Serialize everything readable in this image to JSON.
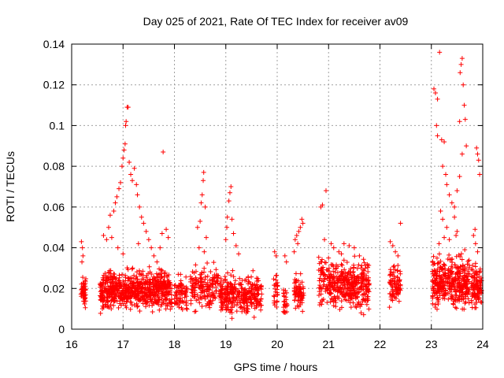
{
  "chart_data": {
    "type": "scatter",
    "title": "Day 025 of 2021, Rate Of TEC Index for receiver av09",
    "xlabel": "GPS time / hours",
    "ylabel": "ROTI / TECUs",
    "xlim": [
      16,
      24
    ],
    "ylim": [
      0,
      0.14
    ],
    "xticks": [
      16,
      17,
      18,
      19,
      20,
      21,
      22,
      23,
      24
    ],
    "yticks": [
      0,
      0.02,
      0.04,
      0.06,
      0.08,
      0.1,
      0.12,
      0.14
    ],
    "ytick_labels": [
      "0",
      "0.02",
      "0.04",
      "0.06",
      "0.08",
      "0.1",
      "0.12",
      "0.14"
    ],
    "grid": true,
    "marker": "+",
    "color": "#ff0000",
    "series": [
      {
        "name": "av09",
        "clusters": [
          {
            "x_start": 16.18,
            "x_end": 16.28,
            "y_low": 0.008,
            "y_high": 0.028,
            "n": 45
          },
          {
            "x_start": 16.55,
            "x_end": 17.95,
            "y_low": 0.006,
            "y_high": 0.032,
            "n": 700
          },
          {
            "x_start": 18.0,
            "x_end": 18.25,
            "y_low": 0.006,
            "y_high": 0.03,
            "n": 70
          },
          {
            "x_start": 18.3,
            "x_end": 18.9,
            "y_low": 0.005,
            "y_high": 0.036,
            "n": 170
          },
          {
            "x_start": 18.9,
            "x_end": 19.7,
            "y_low": 0.004,
            "y_high": 0.03,
            "n": 320
          },
          {
            "x_start": 19.93,
            "x_end": 20.02,
            "y_low": 0.006,
            "y_high": 0.032,
            "n": 25
          },
          {
            "x_start": 20.12,
            "x_end": 20.2,
            "y_low": 0.004,
            "y_high": 0.022,
            "n": 25
          },
          {
            "x_start": 20.32,
            "x_end": 20.52,
            "y_low": 0.006,
            "y_high": 0.03,
            "n": 70
          },
          {
            "x_start": 20.8,
            "x_end": 21.0,
            "y_low": 0.008,
            "y_high": 0.04,
            "n": 60
          },
          {
            "x_start": 21.0,
            "x_end": 21.8,
            "y_low": 0.005,
            "y_high": 0.038,
            "n": 360
          },
          {
            "x_start": 22.18,
            "x_end": 22.4,
            "y_low": 0.008,
            "y_high": 0.034,
            "n": 90
          },
          {
            "x_start": 23.02,
            "x_end": 23.75,
            "y_low": 0.006,
            "y_high": 0.04,
            "n": 380
          },
          {
            "x_start": 23.78,
            "x_end": 23.98,
            "y_low": 0.006,
            "y_high": 0.035,
            "n": 110
          }
        ],
        "outliers": [
          [
            16.19,
            0.043
          ],
          [
            16.21,
            0.04
          ],
          [
            16.22,
            0.036
          ],
          [
            16.2,
            0.033
          ],
          [
            16.68,
            0.044
          ],
          [
            16.72,
            0.05
          ],
          [
            16.75,
            0.056
          ],
          [
            16.78,
            0.045
          ],
          [
            16.82,
            0.058
          ],
          [
            16.85,
            0.062
          ],
          [
            16.88,
            0.065
          ],
          [
            16.92,
            0.069
          ],
          [
            16.95,
            0.072
          ],
          [
            16.98,
            0.08
          ],
          [
            17.0,
            0.084
          ],
          [
            17.02,
            0.088
          ],
          [
            17.04,
            0.091
          ],
          [
            17.05,
            0.1
          ],
          [
            17.06,
            0.102
          ],
          [
            17.08,
            0.109
          ],
          [
            17.1,
            0.109
          ],
          [
            17.12,
            0.082
          ],
          [
            17.15,
            0.076
          ],
          [
            17.18,
            0.073
          ],
          [
            17.22,
            0.079
          ],
          [
            17.26,
            0.071
          ],
          [
            17.28,
            0.066
          ],
          [
            17.32,
            0.06
          ],
          [
            17.36,
            0.055
          ],
          [
            17.4,
            0.052
          ],
          [
            17.45,
            0.048
          ],
          [
            17.5,
            0.044
          ],
          [
            17.55,
            0.04
          ],
          [
            17.6,
            0.036
          ],
          [
            17.66,
            0.033
          ],
          [
            17.72,
            0.04
          ],
          [
            17.76,
            0.047
          ],
          [
            17.78,
            0.087
          ],
          [
            17.84,
            0.049
          ],
          [
            17.88,
            0.045
          ],
          [
            16.9,
            0.04
          ],
          [
            17.0,
            0.037
          ],
          [
            17.3,
            0.042
          ],
          [
            16.62,
            0.046
          ],
          [
            18.45,
            0.05
          ],
          [
            18.5,
            0.053
          ],
          [
            18.52,
            0.062
          ],
          [
            18.54,
            0.066
          ],
          [
            18.56,
            0.073
          ],
          [
            18.57,
            0.077
          ],
          [
            18.6,
            0.06
          ],
          [
            18.62,
            0.045
          ],
          [
            18.48,
            0.04
          ],
          [
            18.58,
            0.038
          ],
          [
            19.0,
            0.044
          ],
          [
            19.03,
            0.055
          ],
          [
            19.06,
            0.063
          ],
          [
            19.08,
            0.067
          ],
          [
            19.1,
            0.07
          ],
          [
            19.12,
            0.054
          ],
          [
            19.15,
            0.047
          ],
          [
            19.2,
            0.041
          ],
          [
            19.25,
            0.037
          ],
          [
            19.02,
            0.05
          ],
          [
            19.95,
            0.038
          ],
          [
            19.98,
            0.036
          ],
          [
            20.15,
            0.036
          ],
          [
            20.18,
            0.033
          ],
          [
            20.35,
            0.044
          ],
          [
            20.38,
            0.046
          ],
          [
            20.42,
            0.048
          ],
          [
            20.45,
            0.05
          ],
          [
            20.48,
            0.054
          ],
          [
            20.5,
            0.052
          ],
          [
            20.4,
            0.042
          ],
          [
            20.33,
            0.038
          ],
          [
            20.85,
            0.06
          ],
          [
            20.88,
            0.061
          ],
          [
            20.95,
            0.068
          ],
          [
            20.92,
            0.044
          ],
          [
            21.05,
            0.042
          ],
          [
            21.1,
            0.04
          ],
          [
            21.2,
            0.038
          ],
          [
            21.3,
            0.042
          ],
          [
            21.4,
            0.041
          ],
          [
            21.5,
            0.04
          ],
          [
            21.6,
            0.036
          ],
          [
            21.25,
            0.037
          ],
          [
            22.2,
            0.043
          ],
          [
            22.25,
            0.041
          ],
          [
            22.3,
            0.038
          ],
          [
            22.4,
            0.052
          ],
          [
            22.35,
            0.036
          ],
          [
            23.05,
            0.118
          ],
          [
            23.08,
            0.116
          ],
          [
            23.12,
            0.113
          ],
          [
            23.16,
            0.136
          ],
          [
            23.1,
            0.1
          ],
          [
            23.12,
            0.095
          ],
          [
            23.2,
            0.093
          ],
          [
            23.25,
            0.092
          ],
          [
            23.22,
            0.08
          ],
          [
            23.28,
            0.076
          ],
          [
            23.3,
            0.071
          ],
          [
            23.35,
            0.066
          ],
          [
            23.4,
            0.062
          ],
          [
            23.18,
            0.058
          ],
          [
            23.22,
            0.054
          ],
          [
            23.3,
            0.05
          ],
          [
            23.45,
            0.055
          ],
          [
            23.48,
            0.046
          ],
          [
            23.5,
            0.048
          ],
          [
            23.55,
            0.102
          ],
          [
            23.56,
            0.126
          ],
          [
            23.58,
            0.13
          ],
          [
            23.6,
            0.133
          ],
          [
            23.62,
            0.12
          ],
          [
            23.64,
            0.11
          ],
          [
            23.66,
            0.103
          ],
          [
            23.68,
            0.09
          ],
          [
            23.6,
            0.086
          ],
          [
            23.55,
            0.075
          ],
          [
            23.5,
            0.068
          ],
          [
            23.45,
            0.06
          ],
          [
            23.25,
            0.045
          ],
          [
            23.15,
            0.042
          ],
          [
            23.35,
            0.044
          ],
          [
            23.65,
            0.039
          ],
          [
            23.82,
            0.046
          ],
          [
            23.85,
            0.049
          ],
          [
            23.88,
            0.089
          ],
          [
            23.9,
            0.086
          ],
          [
            23.92,
            0.083
          ],
          [
            23.94,
            0.076
          ],
          [
            23.86,
            0.042
          ],
          [
            23.9,
            0.038
          ]
        ]
      }
    ]
  }
}
